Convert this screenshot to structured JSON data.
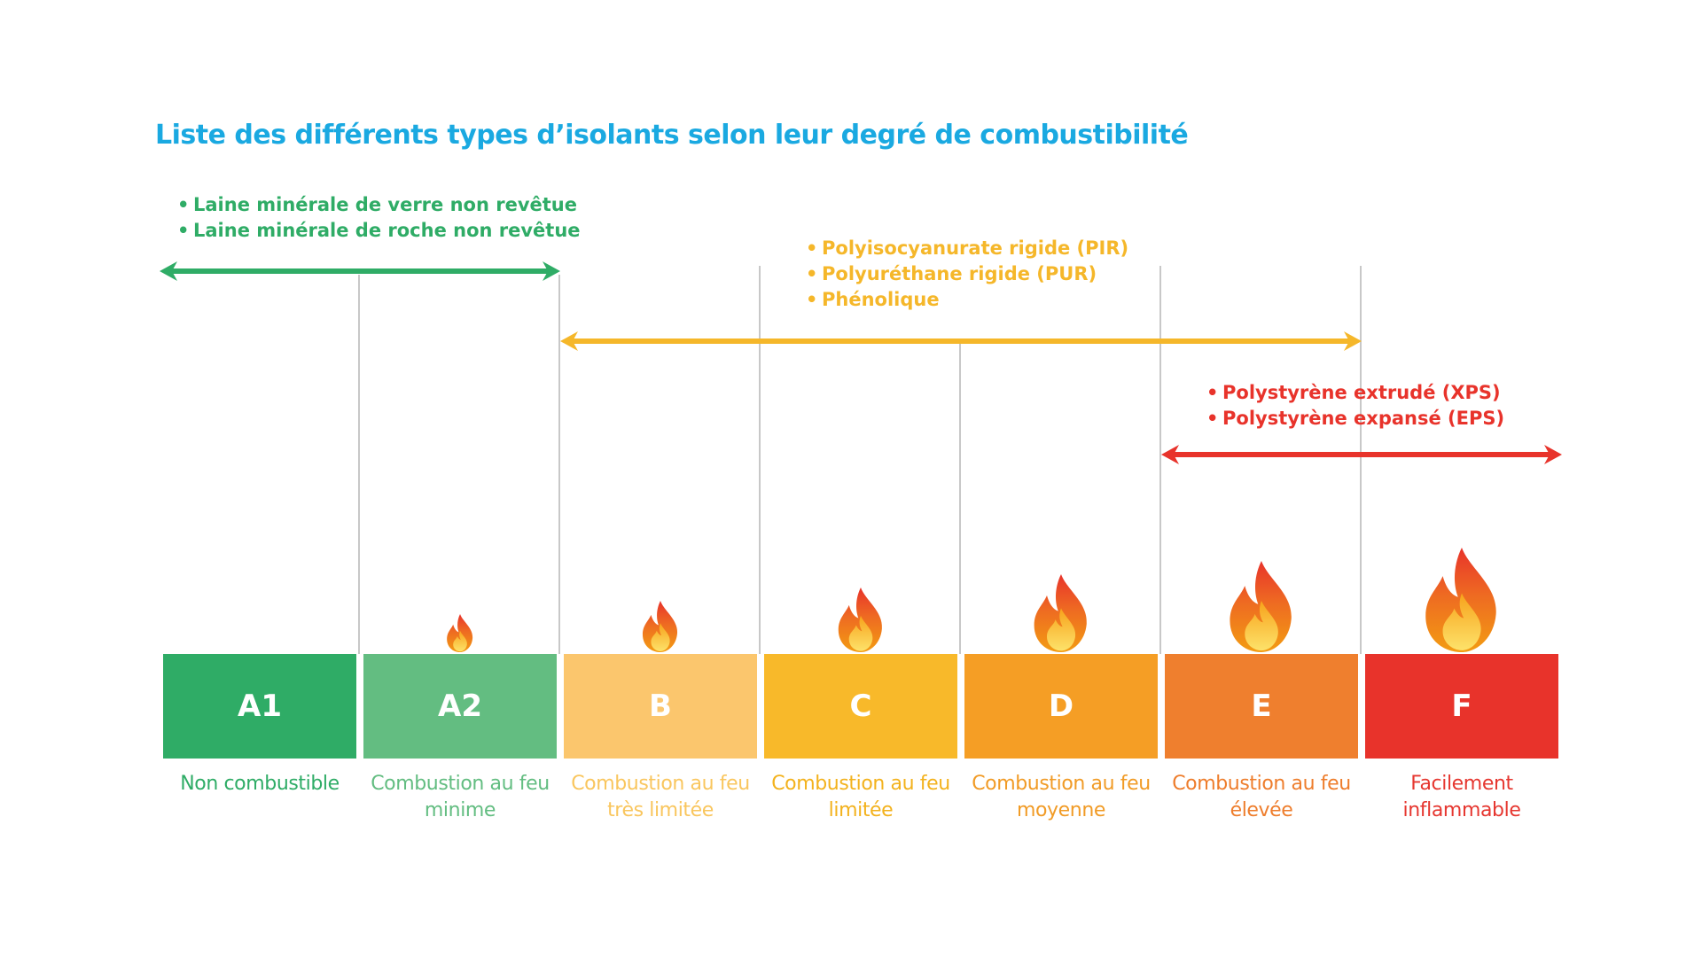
{
  "title": "Liste des différents types d’isolants selon leur degré de combustibilité",
  "colors": {
    "title": "#1aa9e1",
    "green": "#2fac66",
    "yellow": "#f6be2b",
    "red": "#e8332b",
    "divider": "#b5b5b5"
  },
  "groups": [
    {
      "id": "green",
      "color": "#2fac66",
      "items": [
        "Laine minérale de verre non revêtue",
        "Laine minérale de roche non revêtue"
      ],
      "span": [
        "A1",
        "A2"
      ]
    },
    {
      "id": "yellow",
      "color": "#f5b72a",
      "items": [
        "Polyisocyanurate rigide (PIR)",
        "Polyuréthane rigide (PUR)",
        "Phénolique"
      ],
      "span": [
        "B",
        "E"
      ]
    },
    {
      "id": "red",
      "color": "#e8332b",
      "items": [
        "Polystyrène extrudé (XPS)",
        "Polystyrène expansé (EPS)"
      ],
      "span": [
        "E",
        "F"
      ]
    }
  ],
  "classes": [
    {
      "label": "A1",
      "color": "#2fac66",
      "text_color": "#2fac66",
      "description": "Non combustible",
      "flame_level": 0
    },
    {
      "label": "A2",
      "color": "#63bd81",
      "text_color": "#63bd81",
      "description": "Combustion au feu minime",
      "flame_level": 1
    },
    {
      "label": "B",
      "color": "#fbc66d",
      "text_color": "#f9c65e",
      "description": "Combustion au feu très limitée",
      "flame_level": 2
    },
    {
      "label": "C",
      "color": "#f8b92a",
      "text_color": "#f3b21d",
      "description": "Combustion au feu limitée",
      "flame_level": 3
    },
    {
      "label": "D",
      "color": "#f59e25",
      "text_color": "#f19b26",
      "description": "Combustion au feu moyenne",
      "flame_level": 4
    },
    {
      "label": "E",
      "color": "#ef7f2e",
      "text_color": "#ee7d2c",
      "description": "Combustion au feu élevée",
      "flame_level": 5
    },
    {
      "label": "F",
      "color": "#e8332b",
      "text_color": "#e63730",
      "description": "Facilement inflammable",
      "flame_level": 6
    }
  ]
}
